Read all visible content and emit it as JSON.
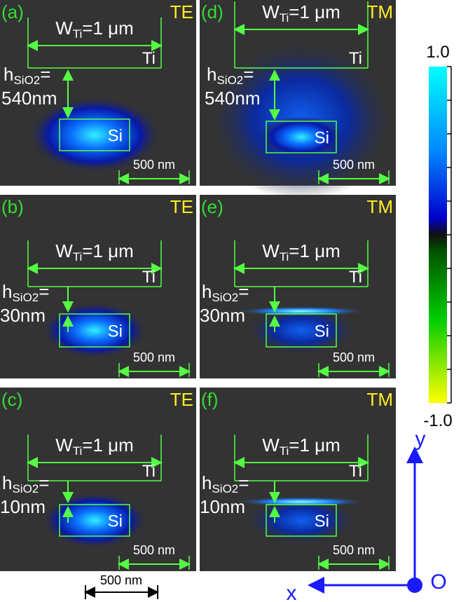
{
  "panels": [
    {
      "label": "(a)",
      "mode": "TE",
      "width": {
        "symbol": "W",
        "sub": "Ti",
        "rest": "=1 μm"
      },
      "gap": {
        "symbol": "h",
        "sub": "SiO2",
        "rest": "=",
        "value": "540nm"
      },
      "top_material": "Ti",
      "core_material": "Si",
      "scale_bar": "500 nm"
    },
    {
      "label": "(d)",
      "mode": "TM",
      "width": {
        "symbol": "W",
        "sub": "Ti",
        "rest": "=1 μm"
      },
      "gap": {
        "symbol": "h",
        "sub": "SiO2",
        "rest": "=",
        "value": "540nm"
      },
      "top_material": "Ti",
      "core_material": "Si",
      "scale_bar": "500 nm"
    },
    {
      "label": "(b)",
      "mode": "TE",
      "width": {
        "symbol": "W",
        "sub": "Ti",
        "rest": "=1 μm"
      },
      "gap": {
        "symbol": "h",
        "sub": "SiO2",
        "rest": "=",
        "value": "30nm"
      },
      "top_material": "Ti",
      "core_material": "Si",
      "scale_bar": "500 nm"
    },
    {
      "label": "(e)",
      "mode": "TM",
      "width": {
        "symbol": "W",
        "sub": "Ti",
        "rest": "=1 μm"
      },
      "gap": {
        "symbol": "h",
        "sub": "SiO2",
        "rest": "=",
        "value": "30nm"
      },
      "top_material": "Ti",
      "core_material": "Si",
      "scale_bar": "500 nm"
    },
    {
      "label": "(c)",
      "mode": "TE",
      "width": {
        "symbol": "W",
        "sub": "Ti",
        "rest": "=1 μm"
      },
      "gap": {
        "symbol": "h",
        "sub": "SiO2",
        "rest": "=",
        "value": "10nm"
      },
      "top_material": "Ti",
      "core_material": "Si",
      "scale_bar": "500 nm"
    },
    {
      "label": "(f)",
      "mode": "TM",
      "width": {
        "symbol": "W",
        "sub": "Ti",
        "rest": "=1 μm"
      },
      "gap": {
        "symbol": "h",
        "sub": "SiO2",
        "rest": "=",
        "value": "10nm"
      },
      "top_material": "Ti",
      "core_material": "Si",
      "scale_bar": "500 nm"
    }
  ],
  "colorbar": {
    "max": "1.0",
    "min": "-1.0"
  },
  "axes": {
    "y": "y",
    "x": "x",
    "origin": "O"
  },
  "bottom_scale_bar": "500 nm"
}
